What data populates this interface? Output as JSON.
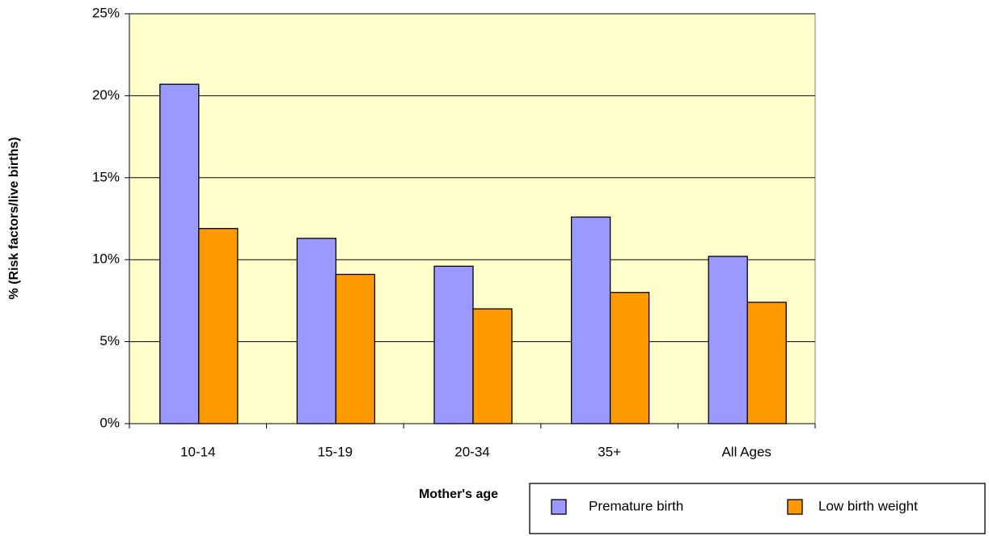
{
  "chart_data": {
    "type": "bar",
    "x_label": "Mother's age",
    "y_label": "% (Risk factors/live births)",
    "categories": [
      "10-14",
      "15-19",
      "20-34",
      "35+",
      "All Ages"
    ],
    "series": [
      {
        "name": "Premature birth",
        "color": "#9999ff",
        "values": [
          20.7,
          11.3,
          9.6,
          12.6,
          10.2
        ]
      },
      {
        "name": "Low birth weight",
        "color": "#ff9900",
        "values": [
          11.9,
          9.1,
          7.0,
          8.0,
          7.4
        ]
      }
    ],
    "ylim": [
      0,
      25
    ],
    "yticks": [
      {
        "value": 0,
        "label": "0%"
      },
      {
        "value": 5,
        "label": "5%"
      },
      {
        "value": 10,
        "label": "10%"
      },
      {
        "value": 15,
        "label": "15%"
      },
      {
        "value": 20,
        "label": "20%"
      },
      {
        "value": 25,
        "label": "25%"
      }
    ],
    "grid": true,
    "legend": "bottom-right",
    "plot_background": "#ffffcc"
  }
}
